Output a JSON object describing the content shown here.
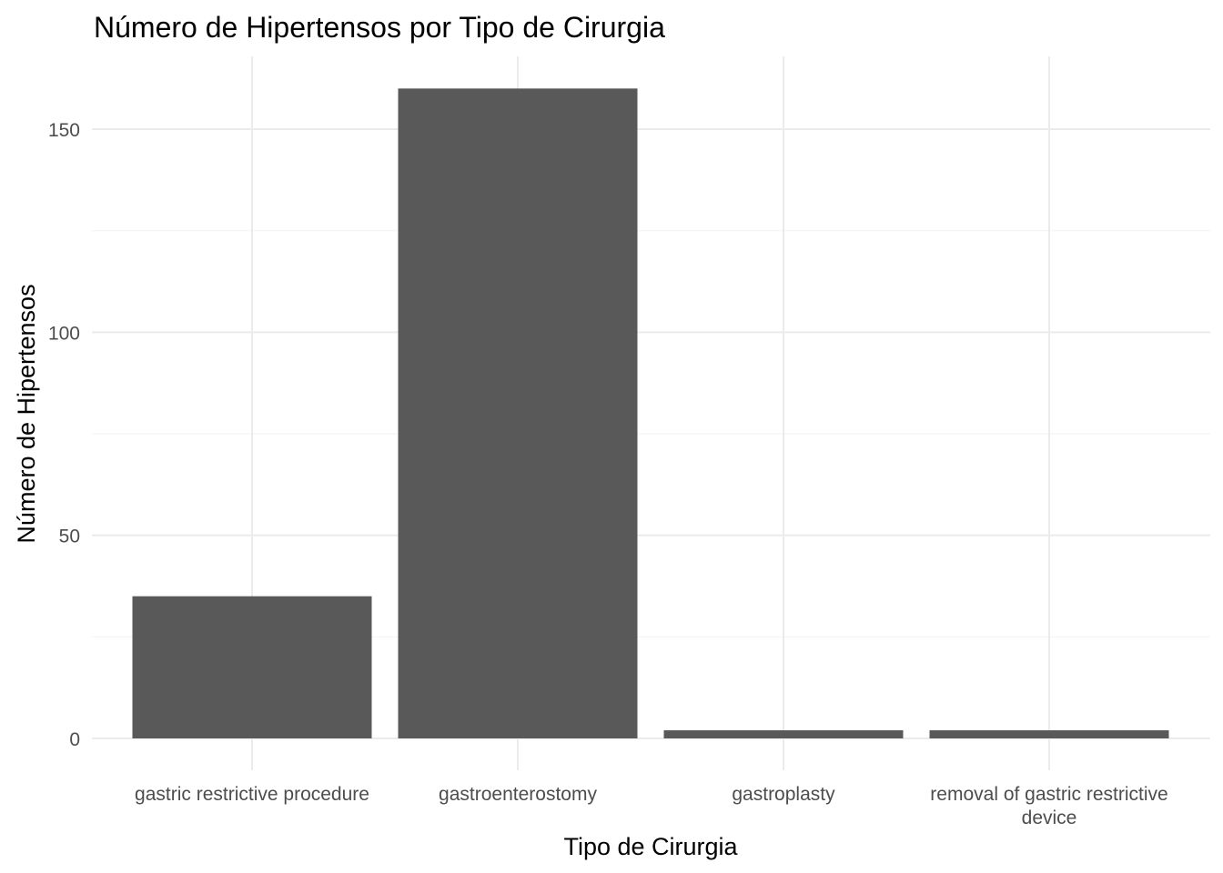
{
  "chart_data": {
    "type": "bar",
    "title": "Número de Hipertensos por Tipo de Cirurgia",
    "xlabel": "Tipo de Cirurgia",
    "ylabel": "Número de Hipertensos",
    "categories": [
      [
        "gastric restrictive procedure"
      ],
      [
        "gastroenterostomy"
      ],
      [
        "gastroplasty"
      ],
      [
        "removal of gastric restrictive",
        "device"
      ]
    ],
    "values": [
      35,
      160,
      2,
      2
    ],
    "yticks": [
      0,
      50,
      100,
      150
    ],
    "ytick_labels": [
      "0",
      "50",
      "100",
      "150"
    ],
    "ylim": [
      0,
      168
    ],
    "grid": true,
    "colors": {
      "bar": "#595959",
      "grid": "#ebebeb",
      "tick_text": "#4d4d4d"
    }
  }
}
